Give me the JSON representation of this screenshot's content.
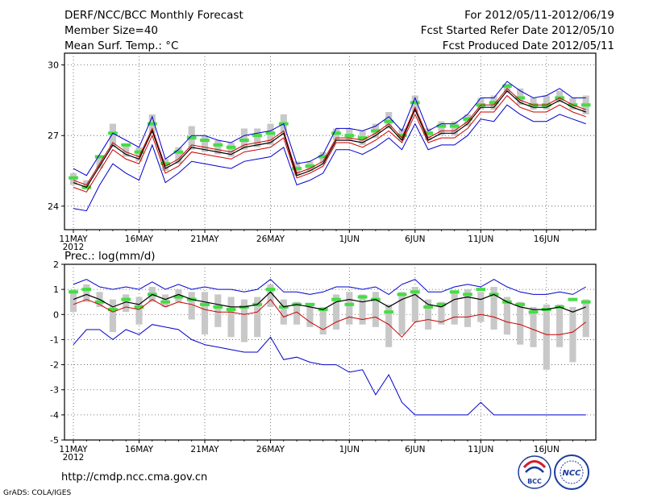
{
  "header": {
    "title": "DERF/NCC/BCC Monthly Forecast",
    "member_size": "Member Size=40",
    "variable": "Mean Surf. Temp.: °C",
    "period": "For 2012/05/11-2012/06/19",
    "start_date": "Fcst Started Refer Date 2012/05/10",
    "produced_date": "Fcst Produced Date 2012/05/11"
  },
  "footer": {
    "url": "http://cmdp.ncc.cma.gov.cn",
    "credit": "GrADS: COLA/IGES",
    "logo_bcc": "BCC",
    "logo_ncc": "NCC"
  },
  "colors": {
    "envelope": "#0000cc",
    "mean": "#000000",
    "low": "#cc0000",
    "box": "#c8c8c8",
    "obs": "#44dd44"
  },
  "chart_data": [
    {
      "type": "line",
      "title": "Mean Surf. Temp.: °C",
      "ylim": [
        23,
        30.5
      ],
      "yticks": [
        24,
        27,
        30
      ],
      "x_start_day": 1,
      "x_ticks": [
        {
          "day": 1,
          "label": "11MAY"
        },
        {
          "day": 6,
          "label": "16MAY"
        },
        {
          "day": 11,
          "label": "21MAY"
        },
        {
          "day": 16,
          "label": "26MAY"
        },
        {
          "day": 22,
          "label": "1JUN"
        },
        {
          "day": 27,
          "label": "6JUN"
        },
        {
          "day": 32,
          "label": "11JUN"
        },
        {
          "day": 37,
          "label": "16JUN"
        }
      ],
      "year_label": "2012",
      "series": [
        {
          "name": "upper",
          "values": [
            25.6,
            25.3,
            26.2,
            27.1,
            26.8,
            26.5,
            27.8,
            26.0,
            26.4,
            27.0,
            27.0,
            26.8,
            26.7,
            27.0,
            27.1,
            27.2,
            27.5,
            25.8,
            25.9,
            26.2,
            27.3,
            27.3,
            27.2,
            27.4,
            27.8,
            27.2,
            28.6,
            27.2,
            27.5,
            27.5,
            27.9,
            28.6,
            28.6,
            29.3,
            28.9,
            28.6,
            28.7,
            29.0,
            28.6,
            28.6
          ]
        },
        {
          "name": "mean_hi",
          "values": [
            25.1,
            24.9,
            25.8,
            26.7,
            26.3,
            26.1,
            27.3,
            25.7,
            26.0,
            26.6,
            26.5,
            26.4,
            26.3,
            26.6,
            26.7,
            26.8,
            27.2,
            25.4,
            25.6,
            25.9,
            26.9,
            26.9,
            26.8,
            27.1,
            27.5,
            26.9,
            28.2,
            26.9,
            27.2,
            27.2,
            27.6,
            28.3,
            28.3,
            29.0,
            28.5,
            28.3,
            28.3,
            28.6,
            28.3,
            28.1
          ]
        },
        {
          "name": "mean",
          "values": [
            25.0,
            24.8,
            25.7,
            26.6,
            26.2,
            26.0,
            27.2,
            25.6,
            25.9,
            26.5,
            26.4,
            26.3,
            26.2,
            26.5,
            26.6,
            26.7,
            27.1,
            25.3,
            25.5,
            25.8,
            26.8,
            26.8,
            26.7,
            27.0,
            27.4,
            26.8,
            28.1,
            26.8,
            27.1,
            27.1,
            27.5,
            28.2,
            28.2,
            28.9,
            28.4,
            28.2,
            28.2,
            28.5,
            28.2,
            28.0
          ]
        },
        {
          "name": "low",
          "values": [
            24.8,
            24.6,
            25.5,
            26.4,
            26.0,
            25.8,
            27.0,
            25.4,
            25.7,
            26.3,
            26.2,
            26.1,
            26.0,
            26.3,
            26.4,
            26.5,
            26.9,
            25.2,
            25.4,
            25.7,
            26.7,
            26.7,
            26.5,
            26.8,
            27.2,
            26.7,
            27.9,
            26.7,
            26.9,
            26.9,
            27.3,
            28.0,
            28.0,
            28.7,
            28.2,
            28.0,
            28.0,
            28.3,
            28.0,
            27.8
          ]
        },
        {
          "name": "lower",
          "values": [
            23.9,
            23.8,
            24.9,
            25.8,
            25.4,
            25.1,
            26.6,
            25.0,
            25.4,
            25.9,
            25.8,
            25.7,
            25.6,
            25.9,
            26.0,
            26.1,
            26.5,
            24.9,
            25.1,
            25.4,
            26.4,
            26.4,
            26.2,
            26.5,
            26.9,
            26.4,
            27.5,
            26.4,
            26.6,
            26.6,
            27.0,
            27.7,
            27.6,
            28.3,
            27.9,
            27.6,
            27.6,
            27.9,
            27.7,
            27.5
          ]
        },
        {
          "name": "obs",
          "values": [
            25.2,
            24.8,
            26.1,
            27.1,
            26.6,
            26.3,
            27.5,
            25.8,
            26.3,
            26.9,
            26.8,
            26.6,
            26.5,
            26.8,
            27.0,
            27.1,
            27.5,
            25.6,
            25.7,
            26.1,
            27.1,
            27.0,
            26.9,
            27.2,
            27.6,
            27.0,
            28.4,
            27.1,
            27.4,
            27.4,
            27.7,
            28.3,
            28.4,
            29.1,
            28.6,
            28.3,
            28.3,
            28.6,
            28.3,
            28.3
          ]
        },
        {
          "name": "box_low",
          "values": [
            24.9,
            24.7,
            25.6,
            26.5,
            26.1,
            25.9,
            27.1,
            25.5,
            25.8,
            26.4,
            26.3,
            26.2,
            26.1,
            26.4,
            26.5,
            26.6,
            27.0,
            25.3,
            25.5,
            25.8,
            26.8,
            26.8,
            26.6,
            26.9,
            27.3,
            26.8,
            28.0,
            26.8,
            27.0,
            27.0,
            27.4,
            28.1,
            28.1,
            28.8,
            28.3,
            28.1,
            28.1,
            28.4,
            28.1,
            27.9
          ]
        },
        {
          "name": "box_high",
          "values": [
            25.4,
            25.1,
            26.1,
            27.5,
            26.6,
            26.5,
            27.9,
            26.0,
            26.5,
            27.4,
            27.0,
            26.8,
            26.7,
            27.3,
            27.3,
            27.5,
            27.9,
            25.9,
            25.9,
            26.3,
            27.3,
            27.3,
            27.2,
            27.5,
            28.0,
            27.3,
            28.7,
            27.3,
            27.6,
            27.6,
            27.9,
            28.6,
            28.7,
            29.2,
            29.0,
            28.6,
            28.7,
            28.9,
            28.6,
            28.7
          ]
        }
      ]
    },
    {
      "type": "line",
      "title": "Prec.: log(mm/d)",
      "ylim": [
        -5,
        2
      ],
      "yticks": [
        -5,
        -4,
        -3,
        -2,
        -1,
        0,
        1,
        2
      ],
      "x_start_day": 1,
      "x_ticks": [
        {
          "day": 1,
          "label": "11MAY"
        },
        {
          "day": 6,
          "label": "16MAY"
        },
        {
          "day": 11,
          "label": "21MAY"
        },
        {
          "day": 16,
          "label": "26MAY"
        },
        {
          "day": 22,
          "label": "1JUN"
        },
        {
          "day": 27,
          "label": "6JUN"
        },
        {
          "day": 32,
          "label": "11JUN"
        },
        {
          "day": 37,
          "label": "16JUN"
        }
      ],
      "year_label": "2012",
      "series": [
        {
          "name": "upper",
          "values": [
            1.2,
            1.4,
            1.1,
            1.0,
            1.1,
            1.0,
            1.3,
            1.0,
            1.2,
            1.0,
            1.1,
            1.0,
            1.0,
            0.9,
            1.0,
            1.4,
            0.9,
            0.9,
            0.8,
            0.9,
            1.1,
            1.1,
            1.0,
            1.1,
            0.8,
            1.2,
            1.4,
            0.9,
            0.9,
            1.1,
            1.2,
            1.1,
            1.4,
            1.1,
            0.9,
            0.8,
            0.8,
            0.9,
            0.8,
            1.1
          ]
        },
        {
          "name": "mean",
          "values": [
            0.6,
            0.8,
            0.6,
            0.3,
            0.5,
            0.4,
            0.8,
            0.6,
            0.8,
            0.6,
            0.5,
            0.4,
            0.3,
            0.3,
            0.4,
            0.9,
            0.3,
            0.4,
            0.3,
            0.2,
            0.5,
            0.6,
            0.5,
            0.6,
            0.3,
            0.6,
            0.8,
            0.4,
            0.3,
            0.6,
            0.7,
            0.6,
            0.8,
            0.5,
            0.3,
            0.2,
            0.2,
            0.3,
            0.1,
            0.3
          ]
        },
        {
          "name": "low",
          "values": [
            0.4,
            0.6,
            0.4,
            0.1,
            0.3,
            0.2,
            0.6,
            0.3,
            0.5,
            0.4,
            0.2,
            0.1,
            0.1,
            0.0,
            0.1,
            0.6,
            -0.1,
            0.1,
            -0.3,
            -0.6,
            -0.3,
            -0.1,
            -0.2,
            -0.1,
            -0.4,
            -0.9,
            -0.3,
            -0.2,
            -0.3,
            -0.1,
            -0.1,
            0.0,
            -0.1,
            -0.3,
            -0.4,
            -0.6,
            -0.8,
            -0.8,
            -0.7,
            -0.3
          ]
        },
        {
          "name": "lower",
          "values": [
            -1.2,
            -0.6,
            -0.6,
            -1.0,
            -0.6,
            -0.8,
            -0.4,
            -0.5,
            -0.6,
            -1.0,
            -1.2,
            -1.3,
            -1.4,
            -1.5,
            -1.5,
            -0.9,
            -1.8,
            -1.7,
            -1.9,
            -2.0,
            -2.0,
            -2.3,
            -2.2,
            -3.2,
            -2.4,
            -3.5,
            -4.0,
            -4.0,
            -4.0,
            -4.0,
            -4.0,
            -3.5,
            -4.0,
            -4.0,
            -4.0,
            -4.0,
            -4.0,
            -4.0,
            -4.0,
            -4.0
          ]
        },
        {
          "name": "obs",
          "values": [
            0.9,
            1.0,
            0.5,
            0.2,
            0.6,
            0.3,
            0.8,
            0.5,
            0.7,
            0.6,
            0.4,
            0.3,
            0.2,
            0.3,
            0.4,
            1.0,
            0.3,
            0.4,
            0.4,
            0.2,
            0.6,
            0.4,
            0.7,
            0.6,
            0.1,
            0.8,
            0.9,
            0.3,
            0.4,
            0.9,
            0.8,
            1.0,
            0.8,
            0.5,
            0.4,
            0.1,
            0.2,
            0.3,
            0.6,
            0.5
          ]
        },
        {
          "name": "box_low",
          "values": [
            0.1,
            0.5,
            0.3,
            -0.7,
            0.1,
            -0.4,
            0.5,
            0.3,
            0.5,
            -0.2,
            -0.8,
            -0.5,
            -0.9,
            -1.1,
            -0.9,
            0.3,
            -0.4,
            -0.4,
            -0.5,
            -0.8,
            -0.6,
            -0.4,
            -0.4,
            -0.5,
            -1.3,
            -0.8,
            -0.3,
            -0.6,
            -0.4,
            -0.4,
            -0.5,
            -0.3,
            -0.6,
            -0.8,
            -1.2,
            -1.3,
            -2.2,
            -1.3,
            -1.9,
            -0.9
          ]
        },
        {
          "name": "box_high",
          "values": [
            1.0,
            1.2,
            0.9,
            0.6,
            0.8,
            0.7,
            1.1,
            0.8,
            1.0,
            0.9,
            0.9,
            0.8,
            0.7,
            0.6,
            0.7,
            1.2,
            0.6,
            0.5,
            0.4,
            0.3,
            0.8,
            0.9,
            0.8,
            0.9,
            0.4,
            0.9,
            1.1,
            0.6,
            0.5,
            0.9,
            1.0,
            0.9,
            1.1,
            0.7,
            0.5,
            0.3,
            0.4,
            0.4,
            0.3,
            0.6
          ]
        }
      ]
    }
  ]
}
